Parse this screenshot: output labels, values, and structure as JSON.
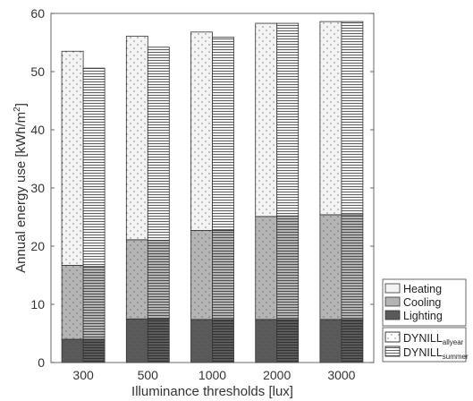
{
  "chart_data": {
    "type": "bar",
    "subtype": "stacked-grouped",
    "ylabel_main": "Annual energy use [kWh/m",
    "ylabel_sup": "2",
    "ylabel_end": "]",
    "xlabel": "Illuminance thresholds [lux]",
    "ylim": [
      0,
      60
    ],
    "yticks": [
      0,
      10,
      20,
      30,
      40,
      50,
      60
    ],
    "categories": [
      "300",
      "500",
      "1000",
      "2000",
      "3000"
    ],
    "components": [
      "Lighting",
      "Cooling",
      "Heating"
    ],
    "groups": [
      {
        "name_main": "DYNILL",
        "name_sub": "allyear",
        "pattern": "dots",
        "values": {
          "Lighting": [
            4.0,
            7.5,
            7.4,
            7.4,
            7.4
          ],
          "Cooling": [
            12.7,
            13.6,
            15.3,
            17.7,
            18.0
          ],
          "Heating": [
            36.8,
            35.0,
            34.1,
            33.2,
            33.2
          ]
        }
      },
      {
        "name_main": "DYNILL",
        "name_sub": "summer",
        "pattern": "hlines",
        "values": {
          "Lighting": [
            4.0,
            7.5,
            7.4,
            7.4,
            7.4
          ],
          "Cooling": [
            12.5,
            13.5,
            15.3,
            17.8,
            18.0
          ],
          "Heating": [
            34.1,
            33.2,
            33.2,
            33.1,
            33.2
          ]
        }
      }
    ],
    "colors": {
      "Heating": "#f3f3f3",
      "Cooling": "#b4b4b4",
      "Lighting": "#5a5a5a"
    },
    "grid": false,
    "legend_placement": "right-bottom"
  }
}
